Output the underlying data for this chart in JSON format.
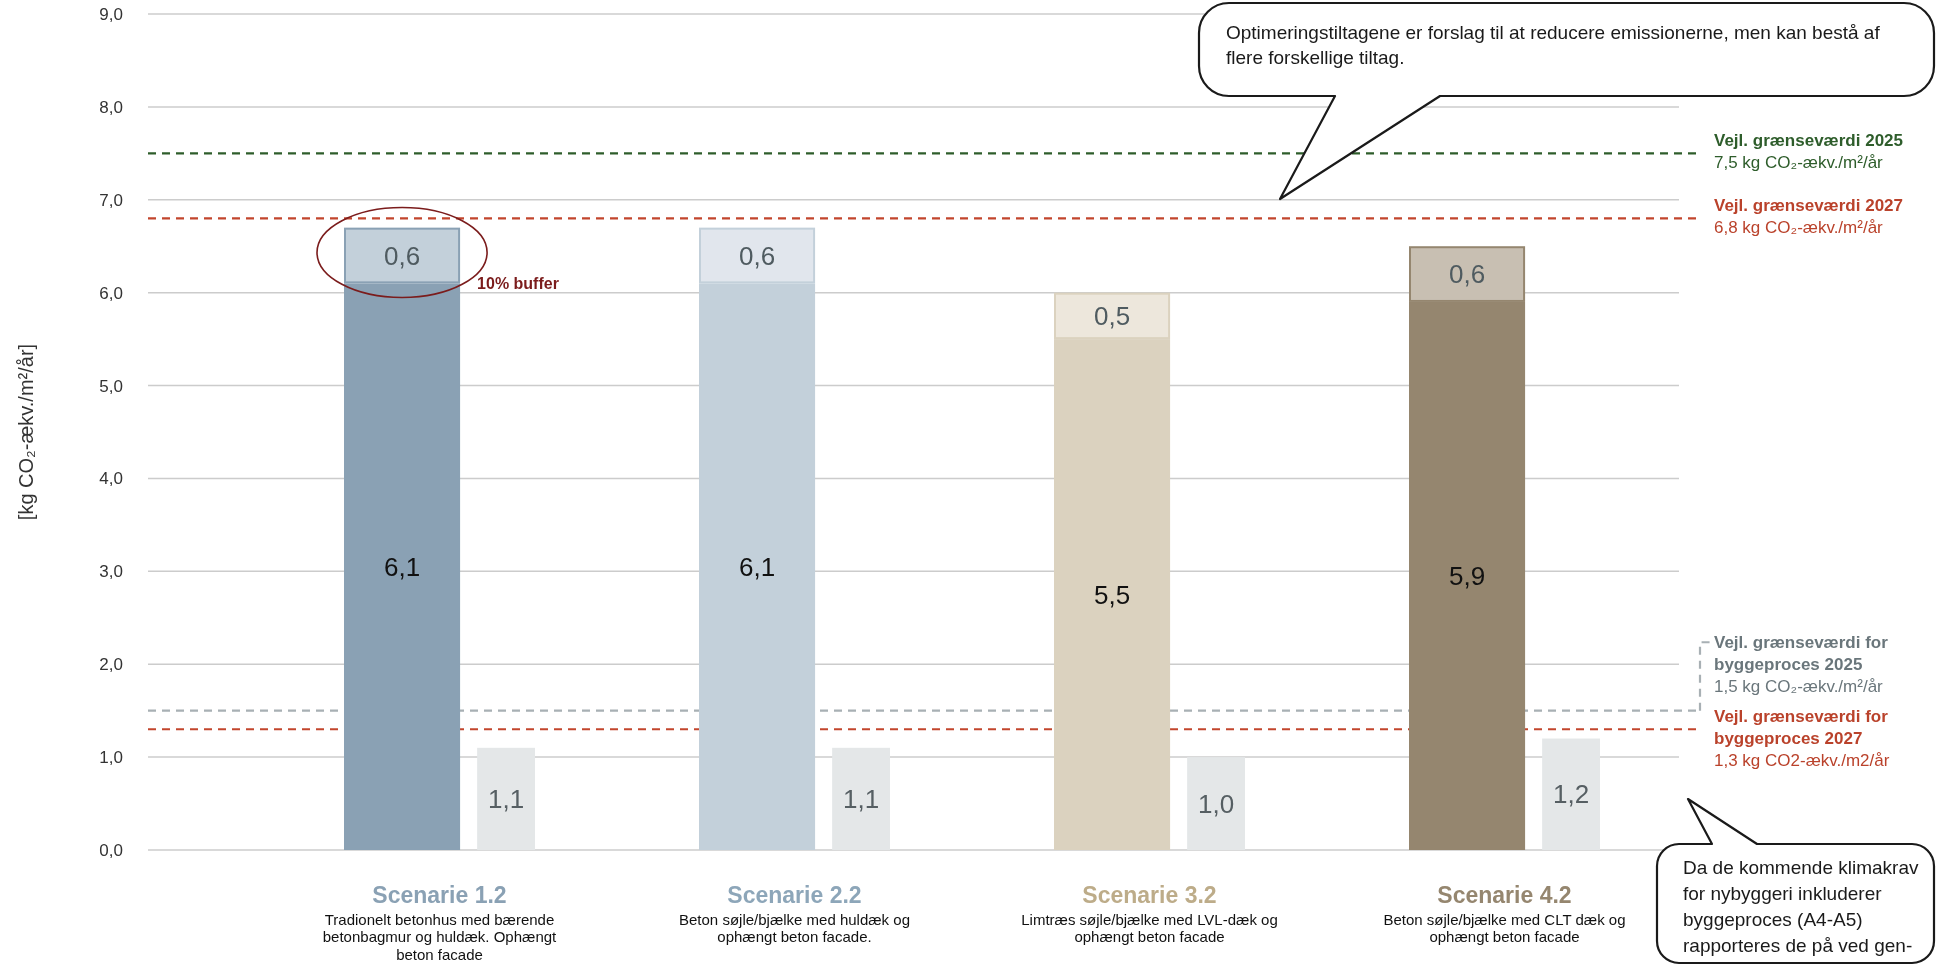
{
  "chart_data": [
    {
      "type": "bar",
      "stacked": true,
      "categories": [
        "Scenarie 1.2",
        "Scenarie 2.2",
        "Scenarie 3.2",
        "Scenarie 4.2"
      ],
      "series": [
        {
          "colors": [
            "#8aa1b4",
            "#c3d0da",
            "#dbd2bf",
            "#95866f"
          ],
          "values": [
            6.1,
            6.1,
            5.5,
            5.9
          ],
          "value_labels": [
            "6,1",
            "6,1",
            "5,5",
            "5,9"
          ]
        },
        {
          "colors": [
            "#c3d0da",
            "#e1e6ed",
            "#ede7dc",
            "#c8bfb2"
          ],
          "values": [
            0.6,
            0.6,
            0.5,
            0.6
          ],
          "value_labels": [
            "0,6",
            "0,6",
            "0,5",
            "0,6"
          ]
        }
      ],
      "ylabel": "[kg CO₂-ækv./m²/år]",
      "ylim": [
        0,
        9
      ],
      "yticks": [
        {
          "value": 0,
          "label": "0,0"
        },
        {
          "value": 1,
          "label": "1,0"
        },
        {
          "value": 2,
          "label": "2,0"
        },
        {
          "value": 3,
          "label": "3,0"
        },
        {
          "value": 4,
          "label": "4,0"
        },
        {
          "value": 5,
          "label": "5,0"
        },
        {
          "value": 6,
          "label": "6,0"
        },
        {
          "value": 7,
          "label": "7,0"
        },
        {
          "value": 8,
          "label": "8,0"
        },
        {
          "value": 9,
          "label": "9,0"
        }
      ],
      "grid": "y",
      "ref_lines": [
        {
          "axis": "y",
          "value": 7.5,
          "label": "Vejl. grænseværdi 2025\n7,5 kg CO₂-ækv./m²/år",
          "color": "#2e5d2b",
          "line_style": "dashed"
        },
        {
          "axis": "y",
          "value": 6.8,
          "label": "Vejl. grænseværdi 2027\n6,8 kg CO₂-ækv./m²/år",
          "color": "#c2452d",
          "line_style": "dashed"
        },
        {
          "axis": "y",
          "value": 1.5,
          "label": "Vejl. grænseværdi for byggeproces 2025\n1,5 kg CO₂-ækv./m²/år",
          "color": "#a8b0b4",
          "line_style": "dashed"
        },
        {
          "axis": "y",
          "value": 1.3,
          "label": "Vejl. grænseværdi for byggeproces 2027\n1,3 kg CO2-ækv./m2/år",
          "color": "#c2452d",
          "line_style": "dashed"
        }
      ],
      "annotations": [
        "Optimeringstiltagene er forslag til at reducere emissionerne, men kan bestå af flere forskellige tiltag.",
        "Da de kommende klimakrav for nybyggeri inkluderer byggeproces (A4-A5) rapporteres de på ved gen-",
        "10% buffer",
        "Tradionelt betonhus med bærende betonbagmur og huldæk. Ophængt beton facade",
        "Beton søjle/bjælke med huldæk og ophængt beton facade.",
        "Limtræs søjle/bjælke med LVL-dæk og ophængt beton facade",
        "Beton søjle/bjælke med CLT dæk og ophængt beton facade"
      ]
    },
    {
      "type": "bar",
      "categories": [
        null,
        null,
        null,
        null
      ],
      "series": [
        {
          "color": "#e4e7e8",
          "values": [
            1.1,
            1.1,
            1.0,
            1.2
          ],
          "value_labels": [
            "1,1",
            "1,1",
            "1,0",
            "1,2"
          ]
        }
      ],
      "ylim": [
        0,
        9
      ]
    }
  ]
}
